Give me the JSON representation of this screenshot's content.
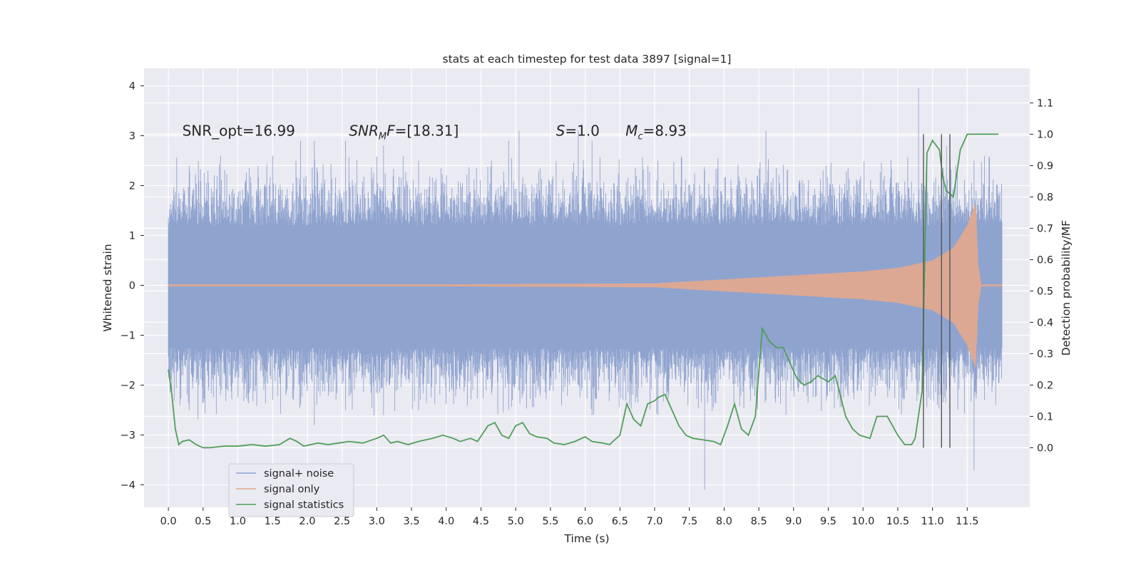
{
  "chart_data": {
    "type": "line",
    "title": "stats at each timestep for test data 3897 [signal=1]",
    "xlabel": "Time (s)",
    "ylabel": "Whitened strain",
    "y2label": "Detection probability/MF",
    "xlim": [
      -0.35,
      12.4
    ],
    "ylim": [
      -4.45,
      4.35
    ],
    "y2lim": [
      -0.19,
      1.21
    ],
    "x_ticks": [
      0.0,
      0.5,
      1.0,
      1.5,
      2.0,
      2.5,
      3.0,
      3.5,
      4.0,
      4.5,
      5.0,
      5.5,
      6.0,
      6.5,
      7.0,
      7.5,
      8.0,
      8.5,
      9.0,
      9.5,
      10.0,
      10.5,
      11.0,
      11.5
    ],
    "x_tick_labels": [
      "0.0",
      "0.5",
      "1.0",
      "1.5",
      "2.0",
      "2.5",
      "3.0",
      "3.5",
      "4.0",
      "4.5",
      "5.0",
      "5.5",
      "6.0",
      "6.5",
      "7.0",
      "7.5",
      "8.0",
      "8.5",
      "9.0",
      "9.5",
      "10.0",
      "10.5",
      "11.0",
      "11.5"
    ],
    "y_ticks": [
      -4,
      -3,
      -2,
      -1,
      0,
      1,
      2,
      3,
      4
    ],
    "y_tick_labels": [
      "−4",
      "−3",
      "−2",
      "−1",
      "0",
      "1",
      "2",
      "3",
      "4"
    ],
    "y2_ticks": [
      0.0,
      0.1,
      0.2,
      0.3,
      0.4,
      0.5,
      0.6,
      0.7,
      0.8,
      0.9,
      1.0,
      1.1
    ],
    "y2_tick_labels": [
      "0.0",
      "0.1",
      "0.2",
      "0.3",
      "0.4",
      "0.5",
      "0.6",
      "0.7",
      "0.8",
      "0.9",
      "1.0",
      "1.1"
    ],
    "grid": true,
    "legend_position": "lower-left",
    "annotations": [
      {
        "id": "snr-opt",
        "text": "SNR_opt=16.99",
        "x": 0.2,
        "y": 3.1,
        "italic": false
      },
      {
        "id": "snr-mf",
        "prefix": "SNR",
        "sub": "M",
        "suffix": "F=[18.31]",
        "x": 2.6,
        "y": 3.1,
        "italic": true
      },
      {
        "id": "s",
        "prefix": "S",
        "sub": "",
        "suffix": "=1.0",
        "x": 5.58,
        "y": 3.1,
        "italic": true
      },
      {
        "id": "mc",
        "prefix": "M",
        "sub": "c",
        "suffix": "=8.93",
        "x": 6.58,
        "y": 3.1,
        "italic": true
      }
    ],
    "vertical_markers": {
      "x": [
        10.87,
        11.13,
        11.25
      ],
      "y2_range": [
        0.0,
        1.0
      ],
      "color": "#555555"
    },
    "series": [
      {
        "name": "signal+ noise",
        "color": "#8fa3cf",
        "t_start": 0.0,
        "t_end": 12.0,
        "spikes": [
          {
            "x": 0.3,
            "min": -2.5,
            "max": 2.4
          },
          {
            "x": 0.75,
            "min": -2.2,
            "max": 2.6
          },
          {
            "x": 1.5,
            "min": -2.3,
            "max": 2.6
          },
          {
            "x": 1.9,
            "min": -2.4,
            "max": 2.9
          },
          {
            "x": 2.1,
            "min": -2.8,
            "max": 2.9
          },
          {
            "x": 2.55,
            "min": -2.5,
            "max": 2.9
          },
          {
            "x": 3.1,
            "min": -2.6,
            "max": 2.8
          },
          {
            "x": 3.6,
            "min": -2.5,
            "max": 2.5
          },
          {
            "x": 4.9,
            "min": -2.5,
            "max": 2.9
          },
          {
            "x": 5.05,
            "min": -2.1,
            "max": 3.1
          },
          {
            "x": 5.9,
            "min": -2.0,
            "max": 3.1
          },
          {
            "x": 6.1,
            "min": -2.6,
            "max": 2.9
          },
          {
            "x": 7.05,
            "min": -2.6,
            "max": 2.5
          },
          {
            "x": 7.72,
            "min": -4.1,
            "max": 2.3
          },
          {
            "x": 8.6,
            "min": -2.3,
            "max": 3.1
          },
          {
            "x": 10.8,
            "min": -2.2,
            "max": 3.95
          },
          {
            "x": 11.2,
            "min": -2.1,
            "max": 2.8
          },
          {
            "x": 11.6,
            "min": -3.7,
            "max": 2.5
          },
          {
            "x": 11.75,
            "min": -2.3,
            "max": 2.6
          }
        ]
      },
      {
        "name": "signal only",
        "color": "#e0a98f",
        "t_start": 0.0,
        "t_end": 12.0,
        "envelope": [
          {
            "x": 0.0,
            "amp": 0.02
          },
          {
            "x": 4.0,
            "amp": 0.02
          },
          {
            "x": 7.0,
            "amp": 0.04
          },
          {
            "x": 8.0,
            "amp": 0.12
          },
          {
            "x": 9.0,
            "amp": 0.2
          },
          {
            "x": 10.0,
            "amp": 0.28
          },
          {
            "x": 10.5,
            "amp": 0.35
          },
          {
            "x": 11.0,
            "amp": 0.5
          },
          {
            "x": 11.3,
            "amp": 0.75
          },
          {
            "x": 11.5,
            "amp": 1.2
          },
          {
            "x": 11.62,
            "amp": 1.65
          },
          {
            "x": 11.66,
            "amp": 0.4
          },
          {
            "x": 11.7,
            "amp": 0.02
          },
          {
            "x": 12.0,
            "amp": 0.02
          }
        ]
      },
      {
        "name": "signal statistics",
        "color": "#4f9e58",
        "axis": "right",
        "x": [
          0.0,
          0.05,
          0.1,
          0.15,
          0.2,
          0.3,
          0.4,
          0.5,
          0.6,
          0.8,
          1.0,
          1.2,
          1.4,
          1.6,
          1.75,
          1.85,
          1.95,
          2.05,
          2.15,
          2.3,
          2.45,
          2.6,
          2.8,
          3.0,
          3.1,
          3.2,
          3.3,
          3.45,
          3.6,
          3.8,
          3.95,
          4.1,
          4.2,
          4.35,
          4.45,
          4.6,
          4.7,
          4.8,
          4.9,
          5.0,
          5.1,
          5.2,
          5.3,
          5.45,
          5.55,
          5.7,
          5.85,
          6.0,
          6.1,
          6.25,
          6.35,
          6.5,
          6.6,
          6.7,
          6.8,
          6.9,
          7.0,
          7.05,
          7.15,
          7.25,
          7.35,
          7.45,
          7.55,
          7.7,
          7.85,
          7.95,
          8.05,
          8.15,
          8.25,
          8.35,
          8.45,
          8.55,
          8.65,
          8.75,
          8.85,
          8.95,
          9.05,
          9.15,
          9.25,
          9.35,
          9.5,
          9.6,
          9.75,
          9.85,
          9.95,
          10.1,
          10.2,
          10.35,
          10.5,
          10.6,
          10.7,
          10.75,
          10.85,
          10.92,
          11.0,
          11.1,
          11.15,
          11.2,
          11.3,
          11.4,
          11.5,
          11.6,
          11.7,
          11.8,
          11.9,
          11.95
        ],
        "y": [
          0.25,
          0.17,
          0.06,
          0.01,
          0.02,
          0.025,
          0.01,
          0.0,
          0.0,
          0.005,
          0.005,
          0.01,
          0.005,
          0.01,
          0.03,
          0.02,
          0.005,
          0.01,
          0.015,
          0.01,
          0.015,
          0.02,
          0.015,
          0.03,
          0.04,
          0.015,
          0.02,
          0.01,
          0.02,
          0.03,
          0.04,
          0.03,
          0.02,
          0.03,
          0.02,
          0.07,
          0.08,
          0.04,
          0.03,
          0.07,
          0.08,
          0.045,
          0.035,
          0.03,
          0.015,
          0.01,
          0.02,
          0.035,
          0.02,
          0.015,
          0.01,
          0.04,
          0.14,
          0.09,
          0.07,
          0.14,
          0.15,
          0.16,
          0.17,
          0.12,
          0.07,
          0.04,
          0.03,
          0.025,
          0.02,
          0.01,
          0.07,
          0.14,
          0.06,
          0.04,
          0.1,
          0.38,
          0.34,
          0.32,
          0.32,
          0.27,
          0.22,
          0.2,
          0.21,
          0.23,
          0.21,
          0.23,
          0.1,
          0.06,
          0.04,
          0.03,
          0.1,
          0.1,
          0.04,
          0.01,
          0.01,
          0.03,
          0.18,
          0.94,
          0.98,
          0.95,
          0.86,
          0.82,
          0.8,
          0.95,
          1.0,
          1.0,
          1.0,
          1.0,
          1.0,
          1.0
        ]
      }
    ]
  }
}
